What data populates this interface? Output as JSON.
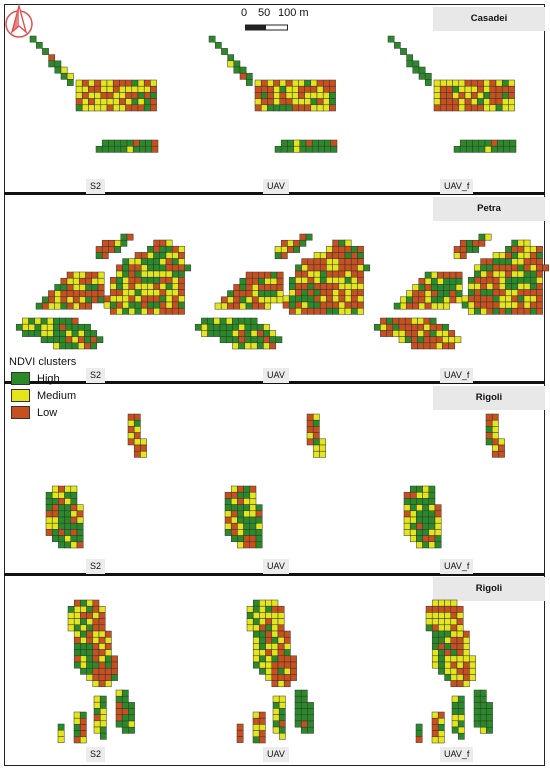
{
  "colors": {
    "high": "#2a8a2a",
    "medium": "#e4e61a",
    "low": "#c8501e",
    "grid_line": "#333333"
  },
  "icons": {
    "north_arrow": "north-arrow-icon"
  },
  "scale_bar": {
    "labels": [
      "0",
      "50",
      "100 m"
    ]
  },
  "legend": {
    "title": "NDVI clusters",
    "items": [
      {
        "label": "High"
      },
      {
        "label": "Medium"
      },
      {
        "label": "Low"
      }
    ]
  },
  "sites": [
    {
      "name": "Casadei",
      "columns": [
        "S2",
        "UAV",
        "UAV_f"
      ]
    },
    {
      "name": "Petra",
      "columns": [
        "S2",
        "UAV",
        "UAV_f"
      ]
    },
    {
      "name": "Rigoli",
      "columns": [
        "S2",
        "UAV",
        "UAV_f"
      ]
    },
    {
      "name": "Rigoli",
      "columns": [
        "S2",
        "UAV",
        "UAV_f"
      ]
    }
  ]
}
